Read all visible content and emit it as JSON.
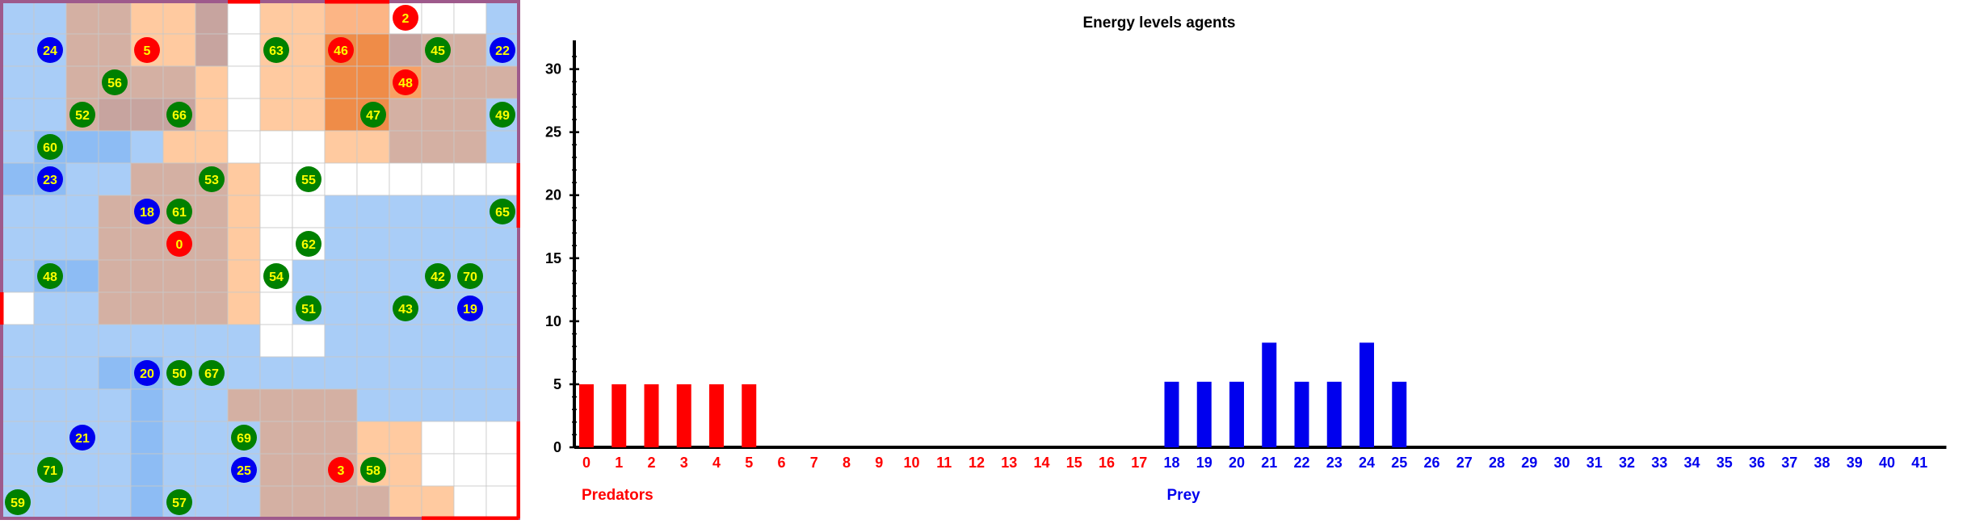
{
  "simulation": {
    "grid": {
      "size": 16,
      "colors": {
        "0": "#ffffff",
        "1": "#a9cdf7",
        "2": "#8dbcf4",
        "3": "#6ea9f4",
        "4": "#ffcaa0",
        "5": "#fcb585",
        "6": "#f9a063",
        "7": "#d4b0a3",
        "8": "#c7a49f",
        "9": "#ef8c48",
        "10": "#b89f9e"
      },
      "cells": [
        "1177448044550001",
        "1177448044998771",
        "1177774044996777",
        "1178884044997771",
        "1222144000447771",
        "2211777400000000",
        "1117777400111111",
        "1117777400111111",
        "1227777401111111",
        "0117777401111111",
        "1111111100111111",
        "1112211111111111",
        "1111211777711111",
        "1111211177744000",
        "1111211177744000",
        "1111211177774400"
      ],
      "border_color": "#9e5a8c",
      "edge_marks": [
        {
          "side": "top",
          "col": 7,
          "color": "#ff0000"
        },
        {
          "side": "top",
          "col": 10,
          "color": "#ff0000"
        },
        {
          "side": "top",
          "col": 11,
          "color": "#ff0000"
        },
        {
          "side": "right",
          "row": 5,
          "color": "#ff0000"
        },
        {
          "side": "right",
          "row": 6,
          "color": "#ff0000"
        },
        {
          "side": "left",
          "row": 9,
          "color": "#ff0000"
        },
        {
          "side": "right",
          "row": 13,
          "color": "#ff0000"
        },
        {
          "side": "right",
          "row": 14,
          "color": "#ff0000"
        },
        {
          "side": "right",
          "row": 15,
          "color": "#ff0000"
        },
        {
          "side": "bottom",
          "col": 13,
          "color": "#ff0000"
        },
        {
          "side": "bottom",
          "col": 14,
          "color": "#ff0000"
        },
        {
          "side": "bottom",
          "col": 15,
          "color": "#ff0000"
        }
      ]
    },
    "agent_colors": {
      "predator": "#ff0000",
      "prey": "#0000ee",
      "food": "#008000",
      "label": "#ffff00"
    },
    "agents": [
      {
        "id": "2",
        "kind": "predator",
        "col": 12.5,
        "row": 0.5
      },
      {
        "id": "24",
        "kind": "prey",
        "col": 1.5,
        "row": 1.5
      },
      {
        "id": "5",
        "kind": "predator",
        "col": 4.5,
        "row": 1.5
      },
      {
        "id": "63",
        "kind": "food",
        "col": 8.5,
        "row": 1.5
      },
      {
        "id": "46",
        "kind": "predator",
        "col": 10.5,
        "row": 1.5
      },
      {
        "id": "45",
        "kind": "food",
        "col": 13.5,
        "row": 1.5
      },
      {
        "id": "22",
        "kind": "prey",
        "col": 15.5,
        "row": 1.5
      },
      {
        "id": "56",
        "kind": "food",
        "col": 3.5,
        "row": 2.5
      },
      {
        "id": "48",
        "kind": "predator",
        "col": 12.5,
        "row": 2.5
      },
      {
        "id": "52",
        "kind": "food",
        "col": 2.5,
        "row": 3.5
      },
      {
        "id": "66",
        "kind": "food",
        "col": 5.5,
        "row": 3.5
      },
      {
        "id": "47",
        "kind": "food",
        "col": 11.5,
        "row": 3.5
      },
      {
        "id": "49",
        "kind": "food",
        "col": 15.5,
        "row": 3.5
      },
      {
        "id": "60",
        "kind": "food",
        "col": 1.5,
        "row": 4.5
      },
      {
        "id": "23",
        "kind": "prey",
        "col": 1.5,
        "row": 5.5
      },
      {
        "id": "53",
        "kind": "food",
        "col": 6.5,
        "row": 5.5
      },
      {
        "id": "55",
        "kind": "food",
        "col": 9.5,
        "row": 5.5
      },
      {
        "id": "18",
        "kind": "prey",
        "col": 4.5,
        "row": 6.5
      },
      {
        "id": "61",
        "kind": "food",
        "col": 5.5,
        "row": 6.5
      },
      {
        "id": "65",
        "kind": "food",
        "col": 15.5,
        "row": 6.5
      },
      {
        "id": "0",
        "kind": "predator",
        "col": 5.5,
        "row": 7.5
      },
      {
        "id": "62",
        "kind": "food",
        "col": 9.5,
        "row": 7.5
      },
      {
        "id": "48",
        "kind": "food",
        "col": 1.5,
        "row": 8.5
      },
      {
        "id": "54",
        "kind": "food",
        "col": 8.5,
        "row": 8.5
      },
      {
        "id": "42",
        "kind": "food",
        "col": 13.5,
        "row": 8.5
      },
      {
        "id": "70",
        "kind": "food",
        "col": 14.5,
        "row": 8.5
      },
      {
        "id": "51",
        "kind": "food",
        "col": 9.5,
        "row": 9.5
      },
      {
        "id": "43",
        "kind": "food",
        "col": 12.5,
        "row": 9.5
      },
      {
        "id": "19",
        "kind": "prey",
        "col": 14.5,
        "row": 9.5
      },
      {
        "id": "20",
        "kind": "prey",
        "col": 4.5,
        "row": 11.5
      },
      {
        "id": "50",
        "kind": "food",
        "col": 5.5,
        "row": 11.5
      },
      {
        "id": "67",
        "kind": "food",
        "col": 6.5,
        "row": 11.5
      },
      {
        "id": "21",
        "kind": "prey",
        "col": 2.5,
        "row": 13.5
      },
      {
        "id": "69",
        "kind": "food",
        "col": 7.5,
        "row": 13.5
      },
      {
        "id": "71",
        "kind": "food",
        "col": 1.5,
        "row": 14.5
      },
      {
        "id": "25",
        "kind": "prey",
        "col": 7.5,
        "row": 14.5
      },
      {
        "id": "3",
        "kind": "predator",
        "col": 10.5,
        "row": 14.5
      },
      {
        "id": "58",
        "kind": "food",
        "col": 11.5,
        "row": 14.5
      },
      {
        "id": "59",
        "kind": "food",
        "col": 0.5,
        "row": 15.5
      },
      {
        "id": "57",
        "kind": "food",
        "col": 5.5,
        "row": 15.5
      }
    ]
  },
  "chart_data": {
    "type": "bar",
    "title": "Energy levels agents",
    "xlabel": "",
    "ylabel": "",
    "ylim": [
      0,
      31
    ],
    "yticks": [
      0,
      5,
      10,
      15,
      20,
      25,
      30
    ],
    "categories": [
      "0",
      "1",
      "2",
      "3",
      "4",
      "5",
      "6",
      "7",
      "8",
      "9",
      "10",
      "11",
      "12",
      "13",
      "14",
      "15",
      "16",
      "17",
      "18",
      "19",
      "20",
      "21",
      "22",
      "23",
      "24",
      "25",
      "26",
      "27",
      "28",
      "29",
      "30",
      "31",
      "32",
      "33",
      "34",
      "35",
      "36",
      "37",
      "38",
      "39",
      "40",
      "41"
    ],
    "series": [
      {
        "name": "Predators",
        "color": "#ff0000",
        "values": [
          5,
          5,
          5,
          5,
          5,
          5,
          0,
          0,
          0,
          0,
          0,
          0,
          0,
          0,
          0,
          0,
          0,
          0,
          0,
          0,
          0,
          0,
          0,
          0,
          0,
          0,
          0,
          0,
          0,
          0,
          0,
          0,
          0,
          0,
          0,
          0,
          0,
          0,
          0,
          0,
          0,
          0
        ]
      },
      {
        "name": "Prey",
        "color": "#0000ee",
        "values": [
          0,
          0,
          0,
          0,
          0,
          0,
          0,
          0,
          0,
          0,
          0,
          0,
          0,
          0,
          0,
          0,
          0,
          0,
          5.2,
          5.2,
          5.2,
          8.3,
          5.2,
          5.2,
          8.3,
          5.2,
          0,
          0,
          0,
          0,
          0,
          0,
          0,
          0,
          0,
          0,
          0,
          0,
          0,
          0,
          0,
          0
        ]
      }
    ],
    "label_color_split": 18,
    "legend": "below x-axis, at first index of each group",
    "grid": false
  }
}
